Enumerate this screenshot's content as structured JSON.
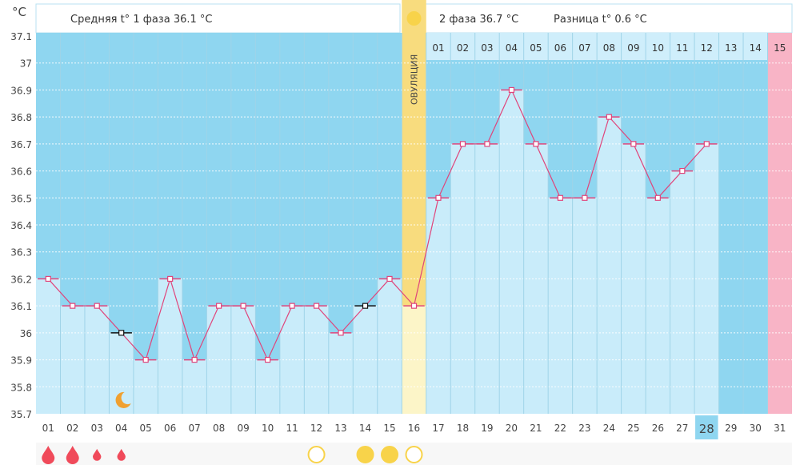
{
  "header": {
    "unit_label": "°C",
    "phase1_avg": "Средняя t° 1 фаза 36.1 °C",
    "phase2_avg": "2 фаза 36.7 °C",
    "difference": "Разница t° 0.6 °C",
    "ovulation_label": "ОВУЛЯЦИЯ"
  },
  "colors": {
    "sky": "#8fd6f0",
    "bar": "#c9ecfa",
    "line": "#e0457b",
    "ovulation_top": "#f8dc7e",
    "ovulation_bottom": "#fcf5c8",
    "expected_period": "#f8b4c6",
    "today": "#8fd6f0",
    "drop": "#f04a5a",
    "sun": "#f8d34a",
    "moon": "#f0a030"
  },
  "chart_data": {
    "type": "line",
    "title": "",
    "ylabel": "°C",
    "xlabel": "",
    "ylim": [
      35.7,
      37.1
    ],
    "y_ticks": [
      "37.1",
      "37",
      "36.9",
      "36.8",
      "36.7",
      "36.6",
      "36.5",
      "36.4",
      "36.3",
      "36.2",
      "36.1",
      "36",
      "35.9",
      "35.8",
      "35.7"
    ],
    "x": [
      "01",
      "02",
      "03",
      "04",
      "05",
      "06",
      "07",
      "08",
      "09",
      "10",
      "11",
      "12",
      "13",
      "14",
      "15",
      "16",
      "17",
      "18",
      "19",
      "20",
      "21",
      "22",
      "23",
      "24",
      "25",
      "26",
      "27",
      "28",
      "29",
      "30",
      "31"
    ],
    "values": [
      36.2,
      36.1,
      36.1,
      36.0,
      35.9,
      36.2,
      35.9,
      36.1,
      36.1,
      35.9,
      36.1,
      36.1,
      36.0,
      36.1,
      36.2,
      36.1,
      36.5,
      36.7,
      36.7,
      36.9,
      36.7,
      36.5,
      36.5,
      36.8,
      36.7,
      36.5,
      36.6,
      36.7,
      null,
      null,
      null
    ],
    "excluded_days": [
      "04",
      "14"
    ],
    "ovulation_day": "16",
    "today": "28",
    "expected_period_day": "31",
    "phase2_day_labels": [
      "01",
      "02",
      "03",
      "04",
      "05",
      "06",
      "07",
      "08",
      "09",
      "10",
      "11",
      "12",
      "13",
      "14",
      "15"
    ],
    "moon_day": "04",
    "markers": [
      {
        "day": "01",
        "type": "drop-large"
      },
      {
        "day": "02",
        "type": "drop-large"
      },
      {
        "day": "03",
        "type": "drop-small"
      },
      {
        "day": "04",
        "type": "drop-small"
      },
      {
        "day": "12",
        "type": "circle-empty"
      },
      {
        "day": "14",
        "type": "circle-filled"
      },
      {
        "day": "15",
        "type": "circle-filled"
      },
      {
        "day": "16",
        "type": "circle-empty"
      }
    ]
  }
}
